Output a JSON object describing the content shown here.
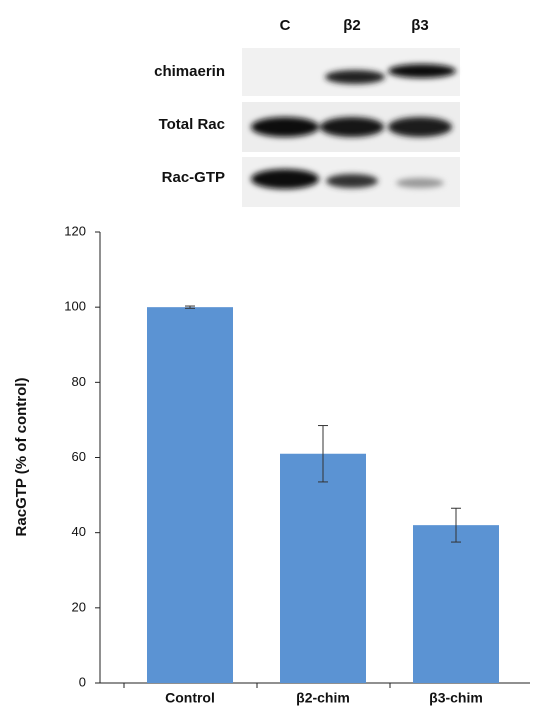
{
  "blot": {
    "lanes": [
      "C",
      "β2",
      "β3"
    ],
    "rows": [
      "chimaerin",
      "Total Rac",
      "Rac-GTP"
    ]
  },
  "chart_data": {
    "type": "bar",
    "y_label": "RacGTP (% of control)",
    "categories": [
      "Control",
      "β2-chim",
      "β3-chim"
    ],
    "values": [
      100,
      61,
      42
    ],
    "errors": [
      0.3,
      7.5,
      4.5
    ],
    "color": "#5b93d3",
    "error_color": "#333333",
    "ylim": [
      0,
      120
    ],
    "yticks": [
      0,
      20,
      40,
      60,
      80,
      100,
      120
    ],
    "grid": false
  }
}
